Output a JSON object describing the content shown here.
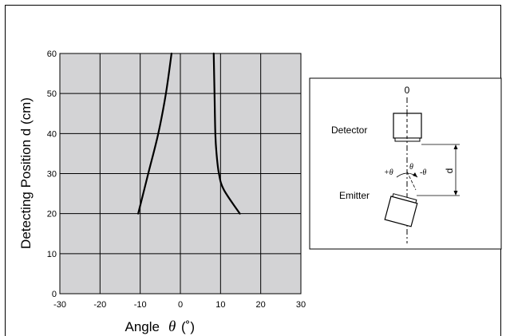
{
  "chart_data": {
    "type": "line",
    "title": "",
    "xlabel": "Angle",
    "xlabel_symbol": "θ",
    "xlabel_unit": "(˚)",
    "ylabel": "Detecting Position d (cm)",
    "xlim": [
      -30,
      30
    ],
    "ylim": [
      0,
      60
    ],
    "x_ticks": [
      "-30",
      "-20",
      "-10",
      "0",
      "10",
      "20",
      "30"
    ],
    "y_ticks": [
      "0",
      "10",
      "20",
      "30",
      "40",
      "50",
      "60"
    ],
    "grid": true,
    "plot_background": "#d3d3d5",
    "series": [
      {
        "points": [
          [
            -10.5,
            20
          ],
          [
            -8,
            30
          ],
          [
            -5.5,
            40
          ],
          [
            -3.6,
            50
          ],
          [
            -2.2,
            60
          ]
        ]
      },
      {
        "points": [
          [
            14.8,
            20
          ],
          [
            10.8,
            26
          ],
          [
            9.6,
            30
          ],
          [
            9.0,
            35
          ],
          [
            8.7,
            40
          ],
          [
            8.5,
            50
          ],
          [
            8.3,
            60
          ]
        ]
      }
    ]
  },
  "diagram": {
    "zero_label": "0",
    "detector_label": "Detector",
    "emitter_label": "Emitter",
    "d_label": "d",
    "plus_theta": "+θ",
    "theta": "θ",
    "minus_theta": "-θ"
  }
}
